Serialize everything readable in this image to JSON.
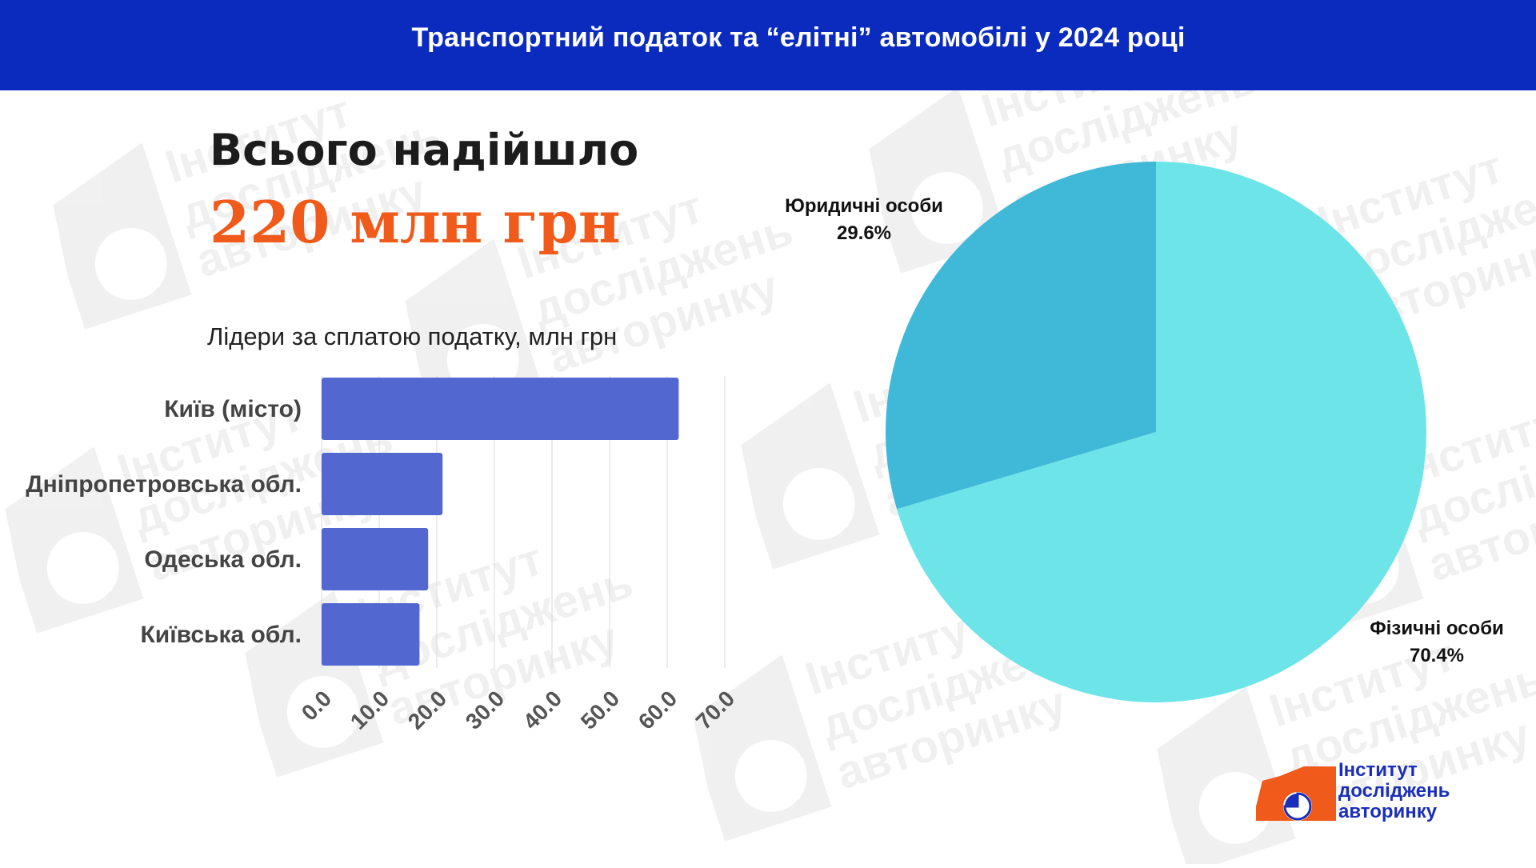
{
  "header": {
    "title": "Транспортний податок та “елітні” автомобілі у 2024 році"
  },
  "summary": {
    "label": "Всього надійшло",
    "value": "220 млн грн"
  },
  "colors": {
    "header_bg": "#0b2bbf",
    "accent": "#f05a1a",
    "bar": "#5367d1",
    "pie_individuals": "#6ce4e8",
    "pie_legal": "#40b8d8",
    "logo_blue": "#1a2fb8",
    "logo_orange": "#f05a1a"
  },
  "chart_data": [
    {
      "type": "bar",
      "orientation": "horizontal",
      "title": "Лідери за сплатою податку, млн грн",
      "categories": [
        "Київ (місто)",
        "Дніпропетровська обл.",
        "Одеська обл.",
        "Київська обл."
      ],
      "values": [
        62,
        21,
        18.5,
        17
      ],
      "xlim": [
        0,
        70
      ],
      "ticks": [
        "0.0",
        "10.0",
        "20.0",
        "30.0",
        "40.0",
        "50.0",
        "60.0",
        "70.0"
      ],
      "grid": true
    },
    {
      "type": "pie",
      "slices": [
        {
          "label": "Фізичні особи",
          "value": 70.4,
          "display": "70.4%"
        },
        {
          "label": "Юридичні особи",
          "value": 29.6,
          "display": "29.6%"
        }
      ]
    }
  ],
  "watermark": {
    "lines": [
      "Інститут",
      "досліджень",
      "авторинку"
    ]
  },
  "logo": {
    "line1": "Інститут",
    "line2": "досліджень",
    "line3": "авторинку"
  }
}
